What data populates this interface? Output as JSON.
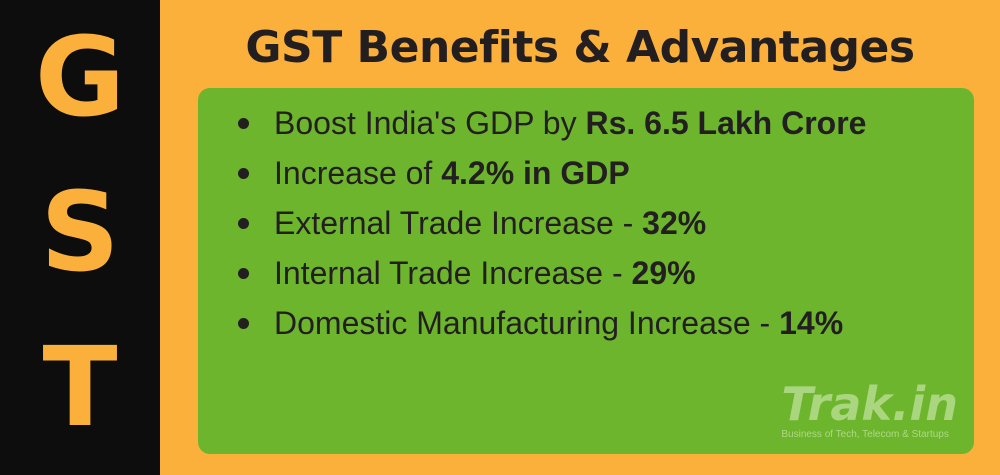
{
  "side_letters": [
    "G",
    "S",
    "T"
  ],
  "title": "GST Benefits & Advantages",
  "points": [
    {
      "text": "Boost India's GDP by ",
      "bold": "Rs. 6.5 Lakh Crore"
    },
    {
      "text": "Increase of ",
      "bold": "4.2% in GDP"
    },
    {
      "text": "External Trade Increase - ",
      "bold": "32%"
    },
    {
      "text": "Internal Trade Increase - ",
      "bold": "29%"
    },
    {
      "text": "Domestic Manufacturing Increase - ",
      "bold": "14%"
    }
  ],
  "brand": {
    "name": "Trak.in",
    "tagline": "Business of Tech, Telecom & Startups"
  },
  "colors": {
    "background": "#fbb03b",
    "side_bar": "#0d0d0d",
    "panel": "#6cb52d",
    "text": "#231f20"
  }
}
